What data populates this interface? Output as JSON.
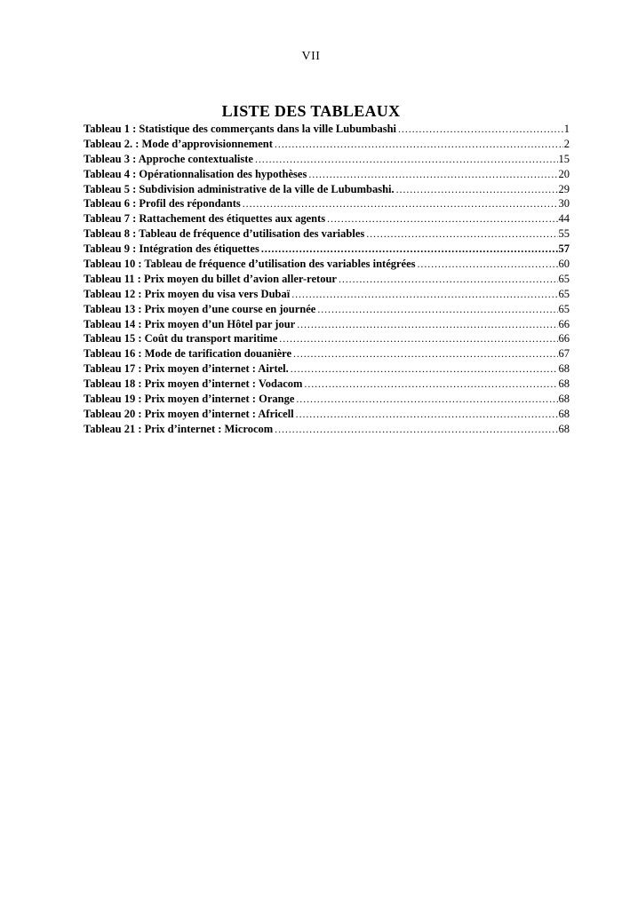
{
  "document": {
    "page_number": "VII",
    "title": "LISTE DES TABLEAUX",
    "text_color": "#000000",
    "background_color": "#ffffff"
  },
  "toc": {
    "entries": [
      {
        "label": "Tableau 1 : Statistique des commerçants dans la ville Lubumbashi",
        "page": "1",
        "bold_page": false
      },
      {
        "label": "Tableau 2. : Mode d’approvisionnement",
        "page": "2",
        "bold_page": false
      },
      {
        "label": "Tableau 3 : Approche contextualiste",
        "page": "15",
        "bold_page": false
      },
      {
        "label": "Tableau 4 : Opérationnalisation des hypothèses",
        "page": "20",
        "bold_page": false
      },
      {
        "label": "Tableau 5 : Subdivision administrative de la ville de Lubumbashi.",
        "page": "29",
        "bold_page": false
      },
      {
        "label": "Tableau 6 : Profil des répondants",
        "page": "30",
        "bold_page": false
      },
      {
        "label": "Tableau 7 : Rattachement des étiquettes aux agents",
        "page": "44",
        "bold_page": false
      },
      {
        "label": "Tableau 8 : Tableau de fréquence d’utilisation des variables",
        "page": "55",
        "bold_page": false
      },
      {
        "label": "Tableau 9 : Intégration des étiquettes",
        "page": "57",
        "bold_page": true
      },
      {
        "label": "Tableau 10 : Tableau de fréquence d’utilisation des variables intégrées",
        "page": "60",
        "bold_page": false
      },
      {
        "label": "Tableau 11 : Prix moyen du billet d’avion aller-retour",
        "page": "65",
        "bold_page": false
      },
      {
        "label": "Tableau 12 : Prix moyen du visa vers Dubaï",
        "page": "65",
        "bold_page": false
      },
      {
        "label": "Tableau 13 : Prix moyen d’une course en journée",
        "page": "65",
        "bold_page": false
      },
      {
        "label": "Tableau 14 : Prix moyen d’un Hôtel par jour",
        "page": "66",
        "bold_page": false
      },
      {
        "label": "Tableau 15 : Coût du transport maritime",
        "page": "66",
        "bold_page": false
      },
      {
        "label": "Tableau 16 : Mode de tarification douanière",
        "page": "67",
        "bold_page": false
      },
      {
        "label": "Tableau 17 : Prix moyen d’internet : Airtel.",
        "page": "68",
        "bold_page": false
      },
      {
        "label": "Tableau 18 : Prix moyen d’internet : Vodacom",
        "page": "68",
        "bold_page": false
      },
      {
        "label": "Tableau 19 : Prix moyen d’internet : Orange",
        "page": "68",
        "bold_page": false
      },
      {
        "label": "Tableau 20 : Prix moyen d’internet : Africell",
        "page": "68",
        "bold_page": false
      },
      {
        "label": "Tableau 21 : Prix d’internet : Microcom",
        "page": "68",
        "bold_page": false
      }
    ]
  }
}
